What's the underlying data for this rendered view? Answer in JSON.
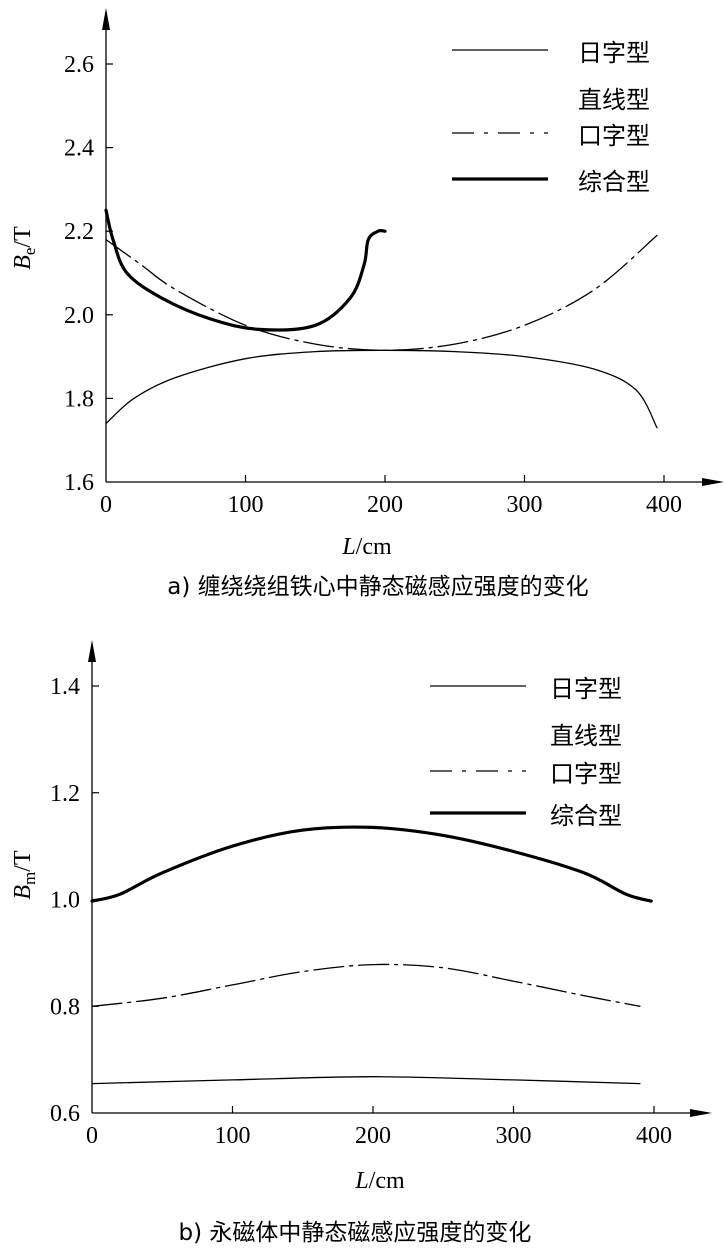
{
  "chart_data": [
    {
      "type": "line",
      "caption": "a) 缠绕绕组铁心中静态磁感应强度的变化",
      "xlabel": "L/cm",
      "xlabel_var": "L",
      "xlabel_unit": "/cm",
      "ylabel": "Be/T",
      "ylabel_var": "B",
      "ylabel_sub": "e",
      "ylabel_unit": "/T",
      "xlim": [
        0,
        400
      ],
      "ylim": [
        1.6,
        2.6
      ],
      "xticks": [
        "0",
        "100",
        "200",
        "300",
        "400"
      ],
      "yticks": [
        "1.6",
        "1.8",
        "2.0",
        "2.2",
        "2.4",
        "2.6"
      ],
      "xtick_values": [
        0,
        100,
        200,
        300,
        400
      ],
      "ytick_values": [
        1.6,
        1.8,
        2.0,
        2.2,
        2.4,
        2.6
      ],
      "legend_position": "top-right",
      "grid": false,
      "legend": [
        {
          "label": "日字型",
          "style": "thin"
        },
        {
          "label": "直线型",
          "style": "none"
        },
        {
          "label": "口字型",
          "style": "dashdot"
        },
        {
          "label": "综合型",
          "style": "thick"
        }
      ],
      "series": [
        {
          "name": "日字型",
          "style": "thin",
          "x": [
            0,
            20,
            50,
            100,
            150,
            200,
            250,
            300,
            350,
            380,
            395
          ],
          "y": [
            1.74,
            1.8,
            1.85,
            1.895,
            1.912,
            1.915,
            1.912,
            1.9,
            1.87,
            1.82,
            1.73
          ]
        },
        {
          "name": "口字型",
          "style": "dashdot",
          "x": [
            0,
            25,
            50,
            100,
            150,
            200,
            250,
            300,
            350,
            395
          ],
          "y": [
            2.18,
            2.12,
            2.06,
            1.975,
            1.93,
            1.915,
            1.93,
            1.975,
            2.06,
            2.19
          ]
        },
        {
          "name": "综合型",
          "style": "thick",
          "x": [
            0,
            5,
            15,
            40,
            75,
            110,
            150,
            175,
            185,
            188,
            195,
            200
          ],
          "y": [
            2.25,
            2.18,
            2.1,
            2.04,
            1.99,
            1.965,
            1.975,
            2.04,
            2.12,
            2.18,
            2.2,
            2.2
          ]
        }
      ]
    },
    {
      "type": "line",
      "caption": "b) 永磁体中静态磁感应强度的变化",
      "xlabel": "L/cm",
      "xlabel_var": "L",
      "xlabel_unit": "/cm",
      "ylabel": "Bm/T",
      "ylabel_var": "B",
      "ylabel_sub": "m",
      "ylabel_unit": "/T",
      "xlim": [
        0,
        400
      ],
      "ylim": [
        0.6,
        1.4
      ],
      "xticks": [
        "0",
        "100",
        "200",
        "300",
        "400"
      ],
      "yticks": [
        "0.6",
        "0.8",
        "1.0",
        "1.2",
        "1.4"
      ],
      "xtick_values": [
        0,
        100,
        200,
        300,
        400
      ],
      "ytick_values": [
        0.6,
        0.8,
        1.0,
        1.2,
        1.4
      ],
      "legend_position": "top-right",
      "grid": false,
      "legend": [
        {
          "label": "日字型",
          "style": "thin"
        },
        {
          "label": "直线型",
          "style": "none"
        },
        {
          "label": "口字型",
          "style": "dashdot"
        },
        {
          "label": "综合型",
          "style": "thick"
        }
      ],
      "series": [
        {
          "name": "日字型",
          "style": "thin",
          "x": [
            0,
            100,
            200,
            300,
            390
          ],
          "y": [
            0.655,
            0.662,
            0.668,
            0.662,
            0.655
          ]
        },
        {
          "name": "口字型",
          "style": "dashdot",
          "x": [
            0,
            50,
            100,
            150,
            200,
            250,
            300,
            350,
            390
          ],
          "y": [
            0.8,
            0.815,
            0.84,
            0.865,
            0.878,
            0.872,
            0.847,
            0.82,
            0.8
          ]
        },
        {
          "name": "综合型",
          "style": "thick",
          "x": [
            0,
            20,
            50,
            100,
            150,
            200,
            250,
            300,
            350,
            380,
            398
          ],
          "y": [
            0.997,
            1.01,
            1.05,
            1.1,
            1.13,
            1.135,
            1.12,
            1.09,
            1.05,
            1.01,
            0.997
          ]
        }
      ]
    }
  ]
}
